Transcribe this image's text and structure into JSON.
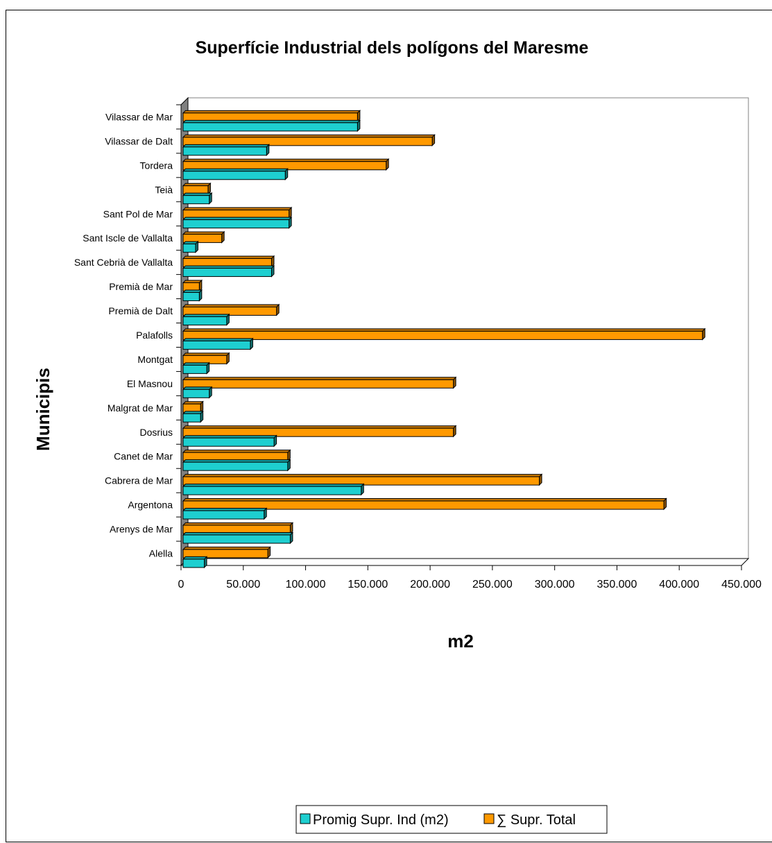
{
  "chart_data": {
    "type": "bar",
    "orientation": "horizontal",
    "title": "Superfície Industrial dels polígons del Maresme",
    "xlabel": "m2",
    "ylabel": "Municipis",
    "xlim": [
      0,
      450000
    ],
    "xticks": [
      0,
      50000,
      100000,
      150000,
      200000,
      250000,
      300000,
      350000,
      400000,
      450000
    ],
    "xtick_labels": [
      "0",
      "50.000",
      "100.000",
      "150.000",
      "200.000",
      "250.000",
      "300.000",
      "350.000",
      "400.000",
      "450.000"
    ],
    "categories": [
      "Alella",
      "Arenys de Mar",
      "Argentona",
      "Cabrera de Mar",
      "Canet de Mar",
      "Dosrius",
      "Malgrat de Mar",
      "El Masnou",
      "Montgat",
      "Palafolls",
      "Premià de Dalt",
      "Premià de Mar",
      "Sant Cebrià de Vallalta",
      "Sant Iscle de Vallalta",
      "Sant Pol de Mar",
      "Teià",
      "Tordera",
      "Vilassar de Dalt",
      "Vilassar de Mar"
    ],
    "series": [
      {
        "name": "Promig Supr. Ind (m2)",
        "color": "#1ecfd0",
        "values": [
          17000,
          86000,
          65000,
          143000,
          84000,
          73000,
          14000,
          21000,
          19000,
          54000,
          35000,
          13000,
          71000,
          10000,
          85000,
          21000,
          82000,
          67000,
          140000
        ]
      },
      {
        "name": "∑ Supr. Total",
        "color": "#ff9900",
        "values": [
          68000,
          86000,
          386000,
          286000,
          84000,
          217000,
          14000,
          217000,
          35000,
          417000,
          75000,
          13000,
          71000,
          31000,
          85000,
          20000,
          163000,
          200000,
          140000
        ]
      }
    ],
    "legend_position": "bottom"
  }
}
